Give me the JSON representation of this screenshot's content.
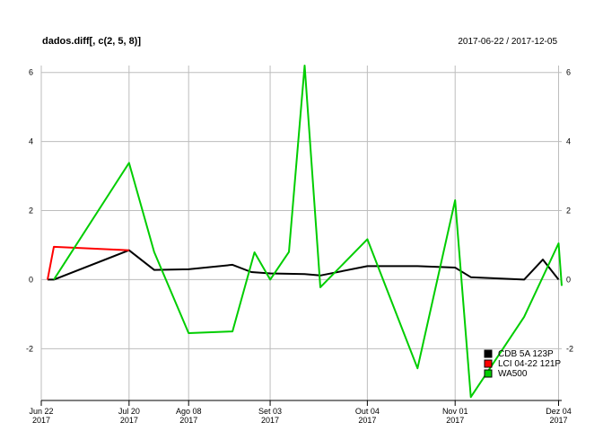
{
  "chart_data": {
    "type": "line",
    "title": "dados.diff[, c(2, 5, 8)]",
    "date_range": "2017-06-22 / 2017-12-05",
    "xlabel": "",
    "ylabel": "",
    "ylim": [
      -3.5,
      6.2
    ],
    "xlim": [
      "2017-06-22",
      "2017-12-05"
    ],
    "yticks": [
      -2,
      0,
      2,
      4,
      6
    ],
    "xticks": [
      {
        "date": "2017-06-22",
        "label1": "Jun 22",
        "label2": "2017"
      },
      {
        "date": "2017-07-20",
        "label1": "Jul 20",
        "label2": "2017"
      },
      {
        "date": "2017-08-08",
        "label1": "Ago 08",
        "label2": "2017"
      },
      {
        "date": "2017-09-03",
        "label1": "Set 03",
        "label2": "2017"
      },
      {
        "date": "2017-10-04",
        "label1": "Out 04",
        "label2": "2017"
      },
      {
        "date": "2017-11-01",
        "label1": "Nov 01",
        "label2": "2017"
      },
      {
        "date": "2017-12-04",
        "label1": "Dez 04",
        "label2": "2017"
      }
    ],
    "grid": true,
    "legend_position": "bottom-right",
    "series": [
      {
        "name": "CDB 5A 123P",
        "color": "#000000",
        "points": [
          [
            "2017-06-24",
            0.0
          ],
          [
            "2017-06-26",
            0.0
          ],
          [
            "2017-07-20",
            0.85
          ],
          [
            "2017-07-28",
            0.28
          ],
          [
            "2017-08-08",
            0.3
          ],
          [
            "2017-08-22",
            0.43
          ],
          [
            "2017-08-28",
            0.22
          ],
          [
            "2017-09-03",
            0.18
          ],
          [
            "2017-09-14",
            0.16
          ],
          [
            "2017-09-19",
            0.12
          ],
          [
            "2017-10-04",
            0.39
          ],
          [
            "2017-10-20",
            0.39
          ],
          [
            "2017-11-01",
            0.35
          ],
          [
            "2017-11-06",
            0.07
          ],
          [
            "2017-11-23",
            0.0
          ],
          [
            "2017-11-29",
            0.58
          ],
          [
            "2017-12-04",
            0.0
          ]
        ]
      },
      {
        "name": "LCI 04-22 121P",
        "color": "#ff0000",
        "points": [
          [
            "2017-06-24",
            0.0
          ],
          [
            "2017-06-26",
            0.95
          ],
          [
            "2017-07-20",
            0.85
          ]
        ]
      },
      {
        "name": "WA500",
        "color": "#00cd00",
        "points": [
          [
            "2017-06-26",
            0.0
          ],
          [
            "2017-07-20",
            3.38
          ],
          [
            "2017-07-28",
            0.8
          ],
          [
            "2017-08-08",
            -1.55
          ],
          [
            "2017-08-22",
            -1.5
          ],
          [
            "2017-08-29",
            0.79
          ],
          [
            "2017-09-03",
            0.0
          ],
          [
            "2017-09-09",
            0.8
          ],
          [
            "2017-09-14",
            6.2
          ],
          [
            "2017-09-19",
            -0.22
          ],
          [
            "2017-10-04",
            1.17
          ],
          [
            "2017-10-20",
            -2.57
          ],
          [
            "2017-11-01",
            2.3
          ],
          [
            "2017-11-06",
            -3.4
          ],
          [
            "2017-11-23",
            -1.08
          ],
          [
            "2017-12-04",
            1.05
          ],
          [
            "2017-12-05",
            -0.18
          ]
        ]
      }
    ]
  }
}
